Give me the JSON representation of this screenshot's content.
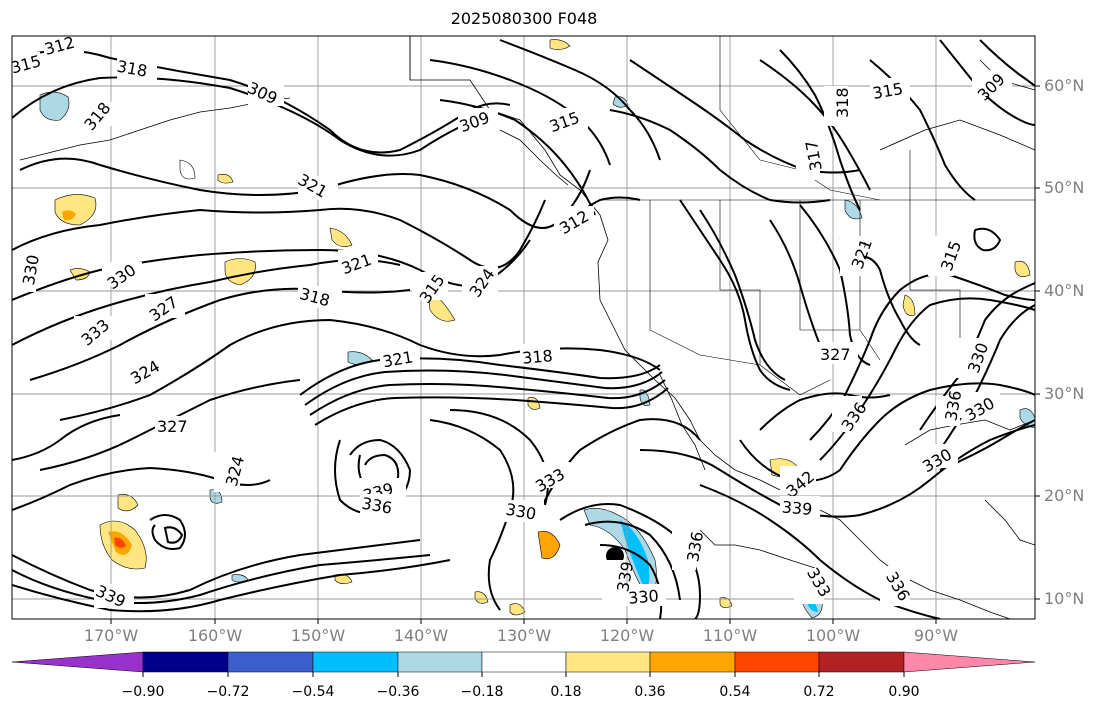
{
  "title": "2025080300 F048",
  "map": {
    "lat_labels": [
      "60°N",
      "50°N",
      "40°N",
      "30°N",
      "20°N",
      "10°N"
    ],
    "lon_labels": [
      "170°W",
      "160°W",
      "150°W",
      "140°W",
      "130°W",
      "120°W",
      "110°W",
      "100°W",
      "90°W"
    ],
    "contour_labels": [
      "312",
      "315",
      "318",
      "318",
      "309",
      "309",
      "315",
      "318",
      "315",
      "309",
      "321",
      "317",
      "330",
      "330",
      "327",
      "321",
      "312",
      "315",
      "324",
      "321",
      "318",
      "333",
      "324",
      "327",
      "324",
      "318",
      "315",
      "330",
      "327",
      "330",
      "336",
      "339",
      "336",
      "333",
      "330",
      "336",
      "342",
      "339",
      "330",
      "339",
      "336",
      "330",
      "333",
      "336",
      "339",
      "321"
    ],
    "storm_marker": "filled-circle"
  },
  "colorbar": {
    "labels": [
      "−0.90",
      "−0.72",
      "−0.54",
      "−0.36",
      "−0.18",
      "0.18",
      "0.36",
      "0.54",
      "0.72",
      "0.90"
    ],
    "colors": [
      "#9932cc",
      "#00008b",
      "#3a5fcd",
      "#00bfff",
      "#add8e6",
      "#ffffff",
      "#ffe680",
      "#ffa500",
      "#ff4500",
      "#b22222",
      "#ff88aa"
    ]
  }
}
